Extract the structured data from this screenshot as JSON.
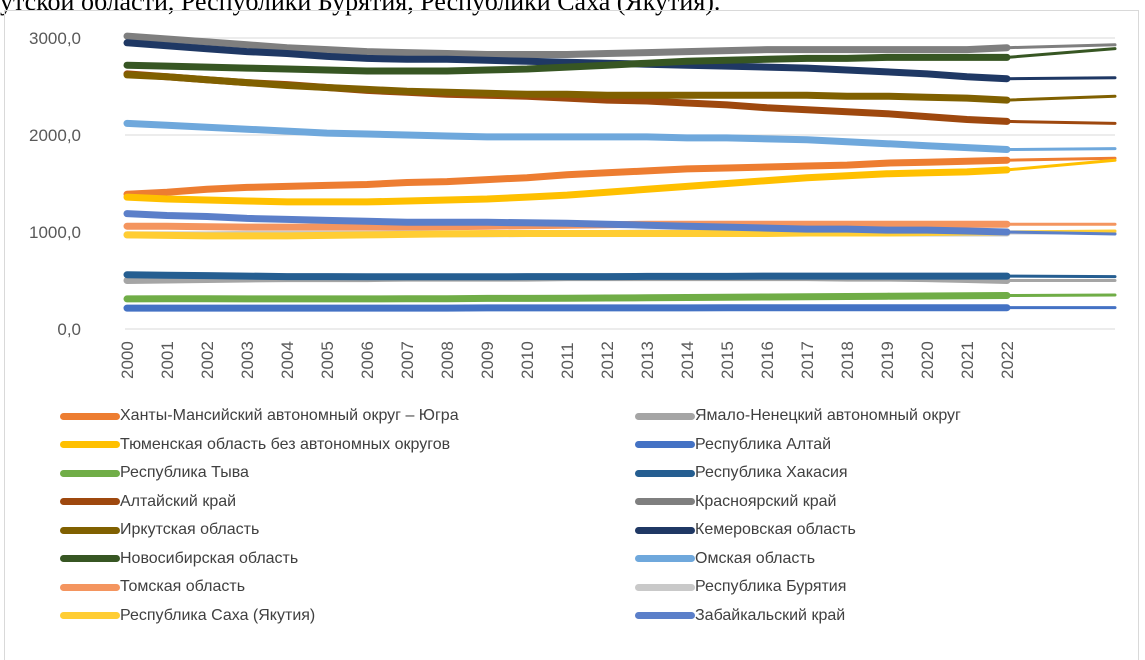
{
  "caption": "утской области, Республики Бурятия, Республики Саха (Якутия).",
  "chart_data": {
    "type": "line",
    "title": "",
    "xlabel": "",
    "ylabel": "",
    "ylim": [
      0,
      3000
    ],
    "yticks": [
      "0,0",
      "1000,0",
      "2000,0",
      "3000,0"
    ],
    "ytick_values": [
      0,
      1000,
      2000,
      3000
    ],
    "categories": [
      "2000",
      "2001",
      "2002",
      "2003",
      "2004",
      "2005",
      "2006",
      "2007",
      "2008",
      "2009",
      "2010",
      "2011",
      "2012",
      "2013",
      "2014",
      "2015",
      "2016",
      "2017",
      "2018",
      "2019",
      "2020",
      "2021",
      "2022"
    ],
    "grid": "horizontal",
    "legend_position": "bottom",
    "series": [
      {
        "name": "Ханты-Мансийский автономный округ – Югра",
        "color": "#ED7D31",
        "values": [
          1390,
          1410,
          1440,
          1460,
          1470,
          1480,
          1490,
          1510,
          1520,
          1540,
          1560,
          1590,
          1610,
          1630,
          1650,
          1660,
          1670,
          1680,
          1690,
          1710,
          1720,
          1730,
          1740
        ],
        "end": 1760
      },
      {
        "name": "Ямало-Ненецкий автономный округ",
        "color": "#A5A5A5",
        "values": [
          500,
          505,
          510,
          515,
          520,
          520,
          520,
          525,
          525,
          525,
          525,
          530,
          530,
          530,
          530,
          530,
          530,
          530,
          525,
          525,
          520,
          510,
          500
        ],
        "end": 500
      },
      {
        "name": "Тюменская область без автономных округов",
        "color": "#FFC000",
        "values": [
          1360,
          1340,
          1330,
          1320,
          1310,
          1310,
          1310,
          1320,
          1330,
          1340,
          1360,
          1380,
          1410,
          1440,
          1470,
          1500,
          1530,
          1560,
          1580,
          1600,
          1610,
          1620,
          1640
        ],
        "end": 1740
      },
      {
        "name": "Республика Алтай",
        "color": "#4472C4",
        "values": [
          215,
          215,
          215,
          215,
          215,
          215,
          215,
          215,
          215,
          218,
          218,
          218,
          218,
          218,
          218,
          220,
          220,
          220,
          220,
          220,
          220,
          220,
          220
        ],
        "end": 220
      },
      {
        "name": "Республика Тыва",
        "color": "#70AD47",
        "values": [
          310,
          312,
          312,
          310,
          310,
          310,
          310,
          312,
          312,
          315,
          315,
          318,
          320,
          322,
          325,
          328,
          330,
          332,
          335,
          338,
          340,
          342,
          345
        ],
        "end": 350
      },
      {
        "name": "Республика Хакасия",
        "color": "#255E91",
        "values": [
          560,
          555,
          550,
          545,
          540,
          540,
          538,
          538,
          538,
          538,
          540,
          540,
          540,
          542,
          542,
          542,
          545,
          545,
          545,
          545,
          545,
          545,
          545
        ],
        "end": 540
      },
      {
        "name": "Алтайский край",
        "color": "#9E480E",
        "values": [
          2630,
          2600,
          2570,
          2540,
          2520,
          2490,
          2460,
          2440,
          2420,
          2410,
          2400,
          2380,
          2360,
          2350,
          2330,
          2310,
          2280,
          2260,
          2240,
          2220,
          2190,
          2160,
          2140
        ],
        "end": 2120
      },
      {
        "name": "Красноярский край",
        "color": "#7F7F7F",
        "values": [
          3020,
          2990,
          2960,
          2930,
          2900,
          2880,
          2860,
          2850,
          2840,
          2830,
          2830,
          2830,
          2840,
          2850,
          2860,
          2870,
          2880,
          2880,
          2880,
          2880,
          2880,
          2880,
          2900
        ],
        "end": 2930
      },
      {
        "name": "Иркутская область",
        "color": "#806000",
        "values": [
          2620,
          2600,
          2570,
          2540,
          2510,
          2490,
          2470,
          2450,
          2440,
          2430,
          2420,
          2420,
          2410,
          2410,
          2410,
          2410,
          2410,
          2410,
          2400,
          2400,
          2390,
          2380,
          2360
        ],
        "end": 2400
      },
      {
        "name": "Кемеровская область",
        "color": "#1F3864",
        "values": [
          2950,
          2920,
          2890,
          2860,
          2840,
          2810,
          2790,
          2780,
          2780,
          2770,
          2760,
          2750,
          2740,
          2730,
          2720,
          2710,
          2700,
          2690,
          2670,
          2650,
          2630,
          2600,
          2580
        ],
        "end": 2590
      },
      {
        "name": "Новосибирская область",
        "color": "#375623",
        "values": [
          2720,
          2710,
          2700,
          2690,
          2680,
          2670,
          2660,
          2660,
          2660,
          2670,
          2680,
          2700,
          2720,
          2740,
          2760,
          2770,
          2780,
          2790,
          2790,
          2800,
          2800,
          2800,
          2800
        ],
        "end": 2890
      },
      {
        "name": "Омская область",
        "color": "#6FA8DC",
        "values": [
          2120,
          2100,
          2080,
          2060,
          2040,
          2020,
          2010,
          2000,
          1990,
          1980,
          1980,
          1980,
          1980,
          1980,
          1970,
          1970,
          1960,
          1950,
          1930,
          1910,
          1890,
          1870,
          1850
        ],
        "end": 1860
      },
      {
        "name": "Томская область",
        "color": "#F4955F",
        "values": [
          1060,
          1060,
          1055,
          1050,
          1050,
          1050,
          1050,
          1050,
          1055,
          1060,
          1065,
          1070,
          1075,
          1080,
          1080,
          1080,
          1080,
          1080,
          1080,
          1080,
          1080,
          1080,
          1080
        ],
        "end": 1080
      },
      {
        "name": "Республика Бурятия",
        "color": "#C9C9C9",
        "values": [
          970,
          970,
          970,
          975,
          975,
          975,
          975,
          980,
          980,
          980,
          985,
          985,
          985,
          990,
          990,
          990,
          990,
          990,
          990,
          990,
          990,
          990,
          990
        ],
        "end": 990
      },
      {
        "name": "Республика Саха (Якутия)",
        "color": "#FFCD33",
        "values": [
          970,
          965,
          960,
          960,
          960,
          965,
          970,
          975,
          980,
          985,
          985,
          985,
          985,
          985,
          985,
          985,
          985,
          990,
          990,
          990,
          995,
          1000,
          1000
        ],
        "end": 1010
      },
      {
        "name": "Забайкальский край",
        "color": "#5B7FC9",
        "values": [
          1190,
          1170,
          1160,
          1140,
          1130,
          1120,
          1110,
          1100,
          1100,
          1100,
          1095,
          1090,
          1080,
          1070,
          1060,
          1050,
          1040,
          1030,
          1030,
          1020,
          1020,
          1010,
          1000
        ],
        "end": 980
      }
    ]
  }
}
